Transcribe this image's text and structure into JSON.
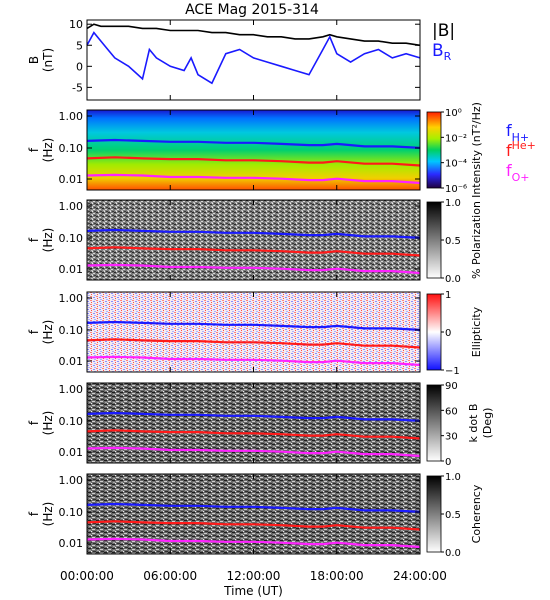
{
  "chart_data": {
    "type": "line",
    "title": "ACE Mag 2015-314",
    "xlabel": "Time (UT)",
    "xticks": [
      "00:00:00",
      "06:00:00",
      "12:00:00",
      "18:00:00",
      "24:00:00"
    ],
    "xlim": [
      0,
      24
    ],
    "panels": [
      {
        "kind": "line",
        "ylabel_top": "B",
        "ylabel_bottom": "(nT)",
        "ylim": [
          -8,
          11
        ],
        "yticks": [
          "10",
          "5",
          "0",
          "-5"
        ],
        "yticks_values": [
          10,
          5,
          0,
          -5
        ],
        "series": [
          {
            "name": "|B|",
            "color": "#000000",
            "x": [
              0,
              0.5,
              1,
              2,
              3,
              4,
              5,
              6,
              7,
              8,
              9,
              10,
              11,
              12,
              13,
              14,
              15,
              16,
              17,
              17.5,
              18,
              19,
              20,
              21,
              22,
              23,
              24
            ],
            "values": [
              9,
              10,
              9.5,
              9.5,
              9.5,
              9,
              9,
              8.5,
              8.5,
              8.5,
              8,
              8,
              7.5,
              7.5,
              7,
              7,
              6.5,
              6.5,
              7,
              7.5,
              7,
              6.5,
              6,
              6,
              5.5,
              5.5,
              5
            ]
          },
          {
            "name": "B_R",
            "color": "#1a1aff",
            "x": [
              0,
              0.5,
              1,
              1.5,
              2,
              3,
              4,
              4.5,
              5,
              6,
              7,
              7.5,
              8,
              9,
              10,
              11,
              12,
              13,
              14,
              15,
              16,
              17,
              17.5,
              18,
              19,
              20,
              21,
              22,
              23,
              24
            ],
            "values": [
              5,
              8,
              6,
              4,
              2,
              0,
              -3,
              4,
              2,
              0,
              -1,
              2,
              -2,
              -4,
              3,
              4,
              2,
              1,
              0,
              -1,
              -2,
              4,
              7,
              3,
              1,
              3,
              4,
              2,
              3,
              2
            ]
          }
        ]
      },
      {
        "kind": "spectrogram",
        "colorscale": "rainbow",
        "colorbar_label": "Intensity (nT²/Hz)",
        "colorbar_ticks": [
          "10⁰",
          "10⁻²",
          "10⁻⁴",
          "10⁻⁶"
        ],
        "ylabel_top": "f",
        "ylabel_bottom": "(Hz)",
        "yticks": [
          "1.00",
          "0.10",
          "0.01"
        ]
      },
      {
        "kind": "spectrogram",
        "colorscale": "gray",
        "colorbar_label": "% Polarization",
        "colorbar_ticks": [
          "1.0",
          "0.5",
          "0.0"
        ],
        "ylabel_top": "f",
        "ylabel_bottom": "(Hz)",
        "yticks": [
          "1.00",
          "0.10",
          "0.01"
        ]
      },
      {
        "kind": "spectrogram",
        "colorscale": "bwr",
        "colorbar_label": "Ellipticity",
        "colorbar_ticks": [
          "1",
          "0",
          "−1"
        ],
        "ylabel_top": "f",
        "ylabel_bottom": "(Hz)",
        "yticks": [
          "1.00",
          "0.10",
          "0.01"
        ]
      },
      {
        "kind": "spectrogram",
        "colorscale": "gray",
        "colorbar_label_top": "k dot B",
        "colorbar_label_bottom": "(Deg)",
        "colorbar_ticks": [
          "90",
          "60",
          "30",
          "0"
        ],
        "ylabel_top": "f",
        "ylabel_bottom": "(Hz)",
        "yticks": [
          "1.00",
          "0.10",
          "0.01"
        ]
      },
      {
        "kind": "spectrogram",
        "colorscale": "gray",
        "colorbar_label": "Coherency",
        "colorbar_ticks": [
          "1.0",
          "0.5",
          "0.0"
        ],
        "ylabel_top": "f",
        "ylabel_bottom": "(Hz)",
        "yticks": [
          "1.00",
          "0.10",
          "0.01"
        ]
      }
    ],
    "gyro_lines": {
      "x": [
        0,
        2,
        4,
        6,
        8,
        10,
        12,
        14,
        16,
        17,
        18,
        20,
        22,
        24
      ],
      "series": [
        {
          "name": "f_H+",
          "color": "#1a1aff",
          "values": [
            0.14,
            0.15,
            0.14,
            0.13,
            0.13,
            0.12,
            0.12,
            0.11,
            0.1,
            0.1,
            0.11,
            0.09,
            0.09,
            0.08
          ]
        },
        {
          "name": "f_He+",
          "color": "#ff1a1a",
          "values": [
            0.035,
            0.038,
            0.035,
            0.033,
            0.033,
            0.03,
            0.03,
            0.028,
            0.025,
            0.025,
            0.028,
            0.023,
            0.023,
            0.02
          ]
        },
        {
          "name": "f_O+",
          "color": "#ff22ff",
          "values": [
            0.009,
            0.0095,
            0.009,
            0.008,
            0.008,
            0.0075,
            0.0075,
            0.007,
            0.0063,
            0.0063,
            0.007,
            0.0058,
            0.0058,
            0.005
          ]
        }
      ]
    },
    "legend": {
      "top_panel": [
        "|B|",
        "B_R"
      ],
      "gyro": [
        {
          "base": "f",
          "sub": "H+"
        },
        {
          "base": "f",
          "sub": "He+"
        },
        {
          "base": "f",
          "sub": "O+"
        }
      ]
    },
    "grid": false
  }
}
